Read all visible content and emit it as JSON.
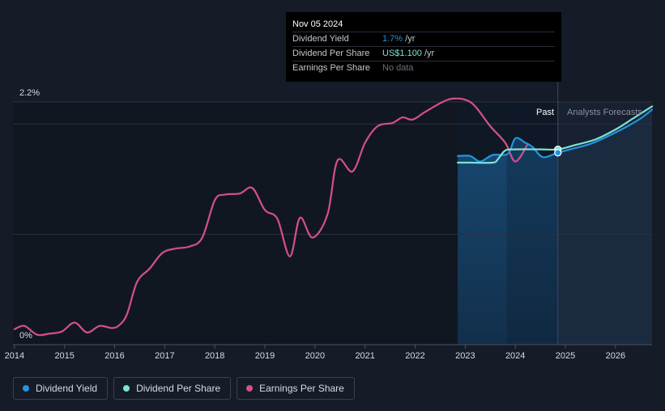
{
  "tooltip": {
    "date": "Nov 05 2024",
    "rows": [
      {
        "label": "Dividend Yield",
        "value": "1.7%",
        "unit": " /yr",
        "color": "#2394df"
      },
      {
        "label": "Dividend Per Share",
        "value": "US$1.100",
        "unit": " /yr",
        "color": "#7be3d7"
      },
      {
        "label": "Earnings Per Share",
        "value": "No data",
        "unit": "",
        "color": "#6b7079"
      }
    ]
  },
  "regions": {
    "past": "Past",
    "forecast": "Analysts Forecasts"
  },
  "legend": [
    {
      "label": "Dividend Yield",
      "color": "#2394df"
    },
    {
      "label": "Dividend Per Share",
      "color": "#7be3d7"
    },
    {
      "label": "Earnings Per Share",
      "color": "#d44f8f"
    }
  ],
  "chart_data": {
    "type": "line",
    "x_ticks": [
      "2014",
      "2015",
      "2016",
      "2017",
      "2018",
      "2019",
      "2020",
      "2021",
      "2022",
      "2023",
      "2024",
      "2025",
      "2026"
    ],
    "y_labels": [
      "2.2%",
      "0%"
    ],
    "ylim": [
      0,
      2.2
    ],
    "xlim": [
      2013.97,
      2026.73
    ],
    "tooltip_x": 2024.85,
    "past_band_start": 2022.85,
    "past_dark_start": 2023.83,
    "forecast_start": 2024.85,
    "series": [
      {
        "name": "Earnings Per Share",
        "color": "#d44f8f",
        "points": [
          [
            2014.0,
            0.14
          ],
          [
            2014.2,
            0.17
          ],
          [
            2014.45,
            0.09
          ],
          [
            2014.7,
            0.1
          ],
          [
            2014.95,
            0.12
          ],
          [
            2015.2,
            0.2
          ],
          [
            2015.45,
            0.11
          ],
          [
            2015.7,
            0.17
          ],
          [
            2015.95,
            0.15
          ],
          [
            2016.1,
            0.18
          ],
          [
            2016.25,
            0.28
          ],
          [
            2016.45,
            0.57
          ],
          [
            2016.7,
            0.69
          ],
          [
            2016.95,
            0.83
          ],
          [
            2017.2,
            0.87
          ],
          [
            2017.5,
            0.89
          ],
          [
            2017.75,
            0.97
          ],
          [
            2018.0,
            1.31
          ],
          [
            2018.2,
            1.36
          ],
          [
            2018.5,
            1.37
          ],
          [
            2018.75,
            1.42
          ],
          [
            2019.0,
            1.22
          ],
          [
            2019.25,
            1.14
          ],
          [
            2019.5,
            0.8
          ],
          [
            2019.7,
            1.15
          ],
          [
            2019.95,
            0.97
          ],
          [
            2020.25,
            1.18
          ],
          [
            2020.45,
            1.67
          ],
          [
            2020.75,
            1.57
          ],
          [
            2021.0,
            1.83
          ],
          [
            2021.25,
            1.98
          ],
          [
            2021.55,
            2.01
          ],
          [
            2021.75,
            2.06
          ],
          [
            2021.95,
            2.04
          ],
          [
            2022.2,
            2.11
          ],
          [
            2022.55,
            2.2
          ],
          [
            2022.75,
            2.23
          ],
          [
            2023.0,
            2.22
          ],
          [
            2023.2,
            2.16
          ],
          [
            2023.5,
            1.98
          ],
          [
            2023.8,
            1.83
          ],
          [
            2024.0,
            1.66
          ],
          [
            2024.25,
            1.82
          ]
        ]
      },
      {
        "name": "Dividend Yield",
        "color": "#2394df",
        "area": true,
        "points": [
          [
            2022.85,
            1.71
          ],
          [
            2023.1,
            1.71
          ],
          [
            2023.3,
            1.66
          ],
          [
            2023.55,
            1.72
          ],
          [
            2023.85,
            1.73
          ],
          [
            2024.0,
            1.87
          ],
          [
            2024.2,
            1.83
          ],
          [
            2024.35,
            1.79
          ],
          [
            2024.55,
            1.7
          ],
          [
            2024.85,
            1.74
          ],
          [
            2025.1,
            1.77
          ],
          [
            2025.5,
            1.82
          ],
          [
            2025.85,
            1.89
          ],
          [
            2026.2,
            1.97
          ],
          [
            2026.5,
            2.05
          ],
          [
            2026.73,
            2.13
          ]
        ]
      },
      {
        "name": "Dividend Per Share",
        "color": "#7be3d7",
        "points": [
          [
            2022.85,
            1.65
          ],
          [
            2023.1,
            1.65
          ],
          [
            2023.55,
            1.65
          ],
          [
            2023.65,
            1.68
          ],
          [
            2023.8,
            1.76
          ],
          [
            2024.0,
            1.77
          ],
          [
            2024.5,
            1.77
          ],
          [
            2024.85,
            1.77
          ],
          [
            2025.2,
            1.81
          ],
          [
            2025.6,
            1.86
          ],
          [
            2026.0,
            1.95
          ],
          [
            2026.35,
            2.05
          ],
          [
            2026.73,
            2.16
          ]
        ]
      }
    ],
    "markers": [
      {
        "series": "Dividend Per Share",
        "x": 2024.85,
        "y": 1.77
      },
      {
        "series": "Dividend Yield",
        "x": 2024.85,
        "y": 1.74
      }
    ]
  }
}
